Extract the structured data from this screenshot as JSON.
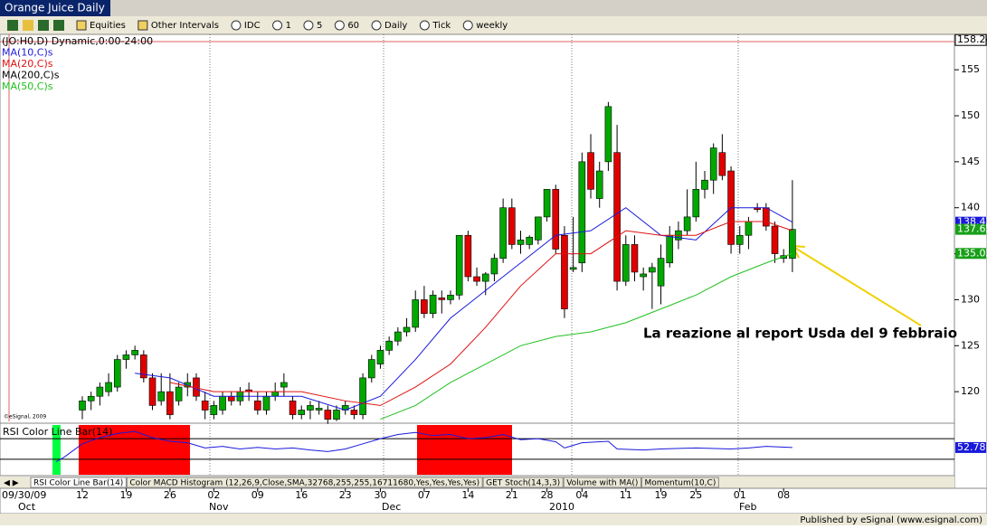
{
  "window": {
    "title": "Orange Juice Daily"
  },
  "toolbar": {
    "items": [
      "Equities",
      "Other Intervals",
      "IDC",
      "1",
      "5",
      "60",
      "Daily",
      "Tick",
      "weekly"
    ]
  },
  "chart": {
    "legend": [
      {
        "text": "(JO:H0,D) Dynamic,0:00-24:00",
        "color": "#000000"
      },
      {
        "text": "MA(10,C)s",
        "color": "#1a1adb"
      },
      {
        "text": "MA(20,C)s",
        "color": "#e01010"
      },
      {
        "text": "MA(200,C)s",
        "color": "#000000"
      },
      {
        "text": "MA(50,C)s",
        "color": "#20c020"
      }
    ],
    "watermark": "©eSignal, 2009",
    "ylim": [
      116.77,
      158.85
    ],
    "yticks": [
      120,
      125,
      130,
      135,
      140,
      145,
      150,
      155
    ],
    "top_price": 158.24,
    "price_markers": [
      {
        "value": 138.43,
        "color": "#1a1adb"
      },
      {
        "value": 137.65,
        "color": "#18a018"
      },
      {
        "value": 135.03,
        "color": "#18a018"
      }
    ],
    "up_color": "#00a800",
    "down_color": "#e00000",
    "candles": [
      [
        118,
        119.5,
        117,
        119
      ],
      [
        119,
        120,
        118,
        119.5
      ],
      [
        119.5,
        121,
        118.5,
        120.5
      ],
      [
        120,
        122,
        119.5,
        121
      ],
      [
        120.5,
        124,
        120,
        123.5
      ],
      [
        123.5,
        124.5,
        122.5,
        124
      ],
      [
        124,
        125,
        123.5,
        124.5
      ],
      [
        124,
        124.5,
        121,
        121.5
      ],
      [
        121.5,
        122,
        118,
        118.5
      ],
      [
        119,
        122,
        118.5,
        120
      ],
      [
        120,
        122,
        117,
        117.5
      ],
      [
        119,
        121,
        118.5,
        120.5
      ],
      [
        120.5,
        122,
        119.5,
        121
      ],
      [
        121.5,
        122,
        119,
        119.5
      ],
      [
        119,
        120,
        117,
        118
      ],
      [
        117.5,
        119,
        117,
        118.5
      ],
      [
        118,
        120,
        117.5,
        119.5
      ],
      [
        119.5,
        120,
        118.5,
        119
      ],
      [
        119,
        120.5,
        118.5,
        120
      ],
      [
        120.2,
        121,
        119,
        120
      ],
      [
        119,
        120,
        117.5,
        118
      ],
      [
        118,
        120,
        117.5,
        119.5
      ],
      [
        119.5,
        121,
        119,
        120
      ],
      [
        120.5,
        122,
        119.5,
        121
      ],
      [
        119,
        119.5,
        117,
        117.5
      ],
      [
        117.5,
        118.5,
        117,
        118
      ],
      [
        118,
        119,
        117,
        118.5
      ],
      [
        118,
        119,
        117.5,
        118.2
      ],
      [
        118,
        118.5,
        116.5,
        117
      ],
      [
        117,
        118.5,
        116.8,
        118
      ],
      [
        118,
        119,
        117.5,
        118.5
      ],
      [
        118,
        118.5,
        117,
        117.5
      ],
      [
        117.5,
        122,
        117,
        121.5
      ],
      [
        121.5,
        124,
        121,
        123.5
      ],
      [
        123,
        125,
        122.5,
        124.5
      ],
      [
        124.5,
        126,
        124,
        125.5
      ],
      [
        125.5,
        127,
        125,
        126.5
      ],
      [
        126.5,
        128,
        126,
        127
      ],
      [
        127,
        131,
        126.5,
        130
      ],
      [
        130,
        131.5,
        128,
        128.5
      ],
      [
        128.5,
        131,
        128,
        130.5
      ],
      [
        130.2,
        131,
        128.5,
        130
      ],
      [
        130,
        131,
        129.5,
        130.5
      ],
      [
        130.5,
        137,
        130,
        137
      ],
      [
        137,
        137.5,
        132,
        132.5
      ],
      [
        132.5,
        133.5,
        131.5,
        132
      ],
      [
        132,
        133,
        130.5,
        132.8
      ],
      [
        132.8,
        135,
        132,
        134.5
      ],
      [
        134.5,
        141,
        134,
        140
      ],
      [
        140,
        141,
        135.5,
        136
      ],
      [
        136,
        137.5,
        135,
        136.5
      ],
      [
        136,
        137,
        135.5,
        136.8
      ],
      [
        136.5,
        139,
        136,
        139
      ],
      [
        139,
        142,
        138.5,
        142
      ],
      [
        142,
        142.5,
        135,
        135.5
      ],
      [
        137,
        138,
        128,
        129
      ],
      [
        133.3,
        139,
        133,
        133.5
      ],
      [
        134,
        146,
        133,
        145
      ],
      [
        146,
        148,
        141,
        142
      ],
      [
        141,
        145,
        140,
        144
      ],
      [
        145,
        151.5,
        144,
        151
      ],
      [
        146,
        149,
        131,
        132
      ],
      [
        132,
        137,
        131.5,
        136
      ],
      [
        136,
        137,
        132,
        133
      ],
      [
        132.5,
        133.5,
        131,
        132.8
      ],
      [
        133,
        134,
        129,
        133.5
      ],
      [
        131.5,
        136,
        129.5,
        134.5
      ],
      [
        134,
        138,
        133.5,
        137
      ],
      [
        136.5,
        138.5,
        135.5,
        137.5
      ],
      [
        137.5,
        142,
        137,
        139
      ],
      [
        139,
        145,
        138.5,
        142
      ],
      [
        142,
        144,
        141,
        143
      ],
      [
        143,
        147,
        141.5,
        146.5
      ],
      [
        146,
        148,
        143,
        143.5
      ],
      [
        144,
        144.5,
        135,
        136
      ],
      [
        136,
        138,
        135,
        137
      ],
      [
        137,
        139,
        135.5,
        138.5
      ],
      [
        140,
        140.5,
        139.5,
        139.8
      ],
      [
        140,
        140.5,
        137.5,
        138
      ],
      [
        138,
        138.5,
        134,
        135
      ],
      [
        134.5,
        135.5,
        134,
        134.8
      ],
      [
        134.5,
        143,
        133,
        137.65
      ]
    ],
    "categories": [
      "12",
      null,
      null,
      null,
      null,
      "19",
      null,
      null,
      null,
      null,
      "26",
      null,
      null,
      null,
      null,
      "02",
      null,
      null,
      null,
      null,
      "09",
      null,
      null,
      null,
      null,
      "16",
      null,
      null,
      null,
      null,
      "23",
      null,
      null,
      null,
      "30",
      null,
      null,
      null,
      null,
      "07",
      null,
      null,
      null,
      null,
      "14",
      null,
      null,
      null,
      null,
      "21",
      null,
      null,
      null,
      "28",
      null,
      null,
      null,
      "04",
      null,
      null,
      null,
      null,
      "11",
      null,
      null,
      null,
      "19",
      null,
      null,
      null,
      "25",
      null,
      null,
      null,
      null,
      "01",
      null,
      null,
      null,
      null,
      "08",
      null
    ],
    "ma_series": [
      {
        "color": "#1a1adb",
        "x": [
          6,
          10,
          15,
          20,
          25,
          30,
          34,
          38,
          42,
          46,
          50,
          54,
          58,
          62,
          66,
          70,
          74,
          78,
          81
        ],
        "values": [
          122,
          121.5,
          119.5,
          119.5,
          119.5,
          118,
          119.5,
          123.5,
          128,
          131,
          134,
          137,
          137.5,
          140,
          137,
          136.5,
          140,
          140,
          138.43
        ]
      },
      {
        "color": "#e01010",
        "x": [
          10,
          15,
          20,
          25,
          30,
          34,
          38,
          42,
          46,
          50,
          54,
          58,
          62,
          66,
          70,
          74,
          78,
          81
        ],
        "values": [
          121,
          120,
          120,
          120,
          119,
          118.5,
          120.5,
          123,
          127,
          131.5,
          135,
          135,
          137.5,
          137,
          137,
          138.5,
          138.5,
          137.5
        ]
      },
      {
        "color": "#20c020",
        "x": [
          34,
          38,
          42,
          46,
          50,
          54,
          58,
          62,
          66,
          70,
          74,
          78,
          81
        ],
        "values": [
          117,
          118.5,
          121,
          123,
          125,
          126,
          126.5,
          127.5,
          129,
          130.5,
          132.5,
          134,
          135.03
        ]
      }
    ],
    "annotation": "La reazione al report Usda del 9 febbraio"
  },
  "rsi": {
    "title": "RSI Color Line Bar(14)",
    "ylim": [
      0,
      100
    ],
    "levels": [
      70,
      30
    ],
    "color": "#1a1adb",
    "x": [
      -3,
      -2,
      0,
      2,
      4,
      6,
      8,
      10,
      12,
      14,
      16,
      18,
      20,
      22,
      24,
      26,
      28,
      30,
      32,
      34,
      36,
      38,
      40,
      42,
      44,
      46,
      48,
      50,
      52,
      54,
      55,
      57,
      60,
      61,
      64,
      66,
      70,
      74,
      76,
      78,
      81
    ],
    "values": [
      25,
      35,
      60,
      72,
      80,
      84,
      72,
      65,
      62,
      52,
      55,
      50,
      53,
      50,
      52,
      48,
      45,
      50,
      60,
      70,
      78,
      82,
      76,
      78,
      70,
      72,
      78,
      68,
      70,
      64,
      52,
      62,
      65,
      50,
      48,
      50,
      52,
      50,
      52,
      55,
      52.78
    ],
    "last": 52.78
  },
  "tabs": [
    "RSI Color Line Bar(14)",
    "Color MACD Histogram (12,26,9,Close,SMA,32768,255,255,16711680,Yes,Yes,Yes,Yes)",
    "GET Stoch(14,3,3)",
    "Volume with MA()",
    "Momentum(10,C)"
  ],
  "xaxis": {
    "start_label": "09/30/09",
    "months": [
      "Oct",
      "Nov",
      "Dec",
      "2010",
      "Feb"
    ]
  },
  "status": "Published by eSignal (www.esignal.com)"
}
